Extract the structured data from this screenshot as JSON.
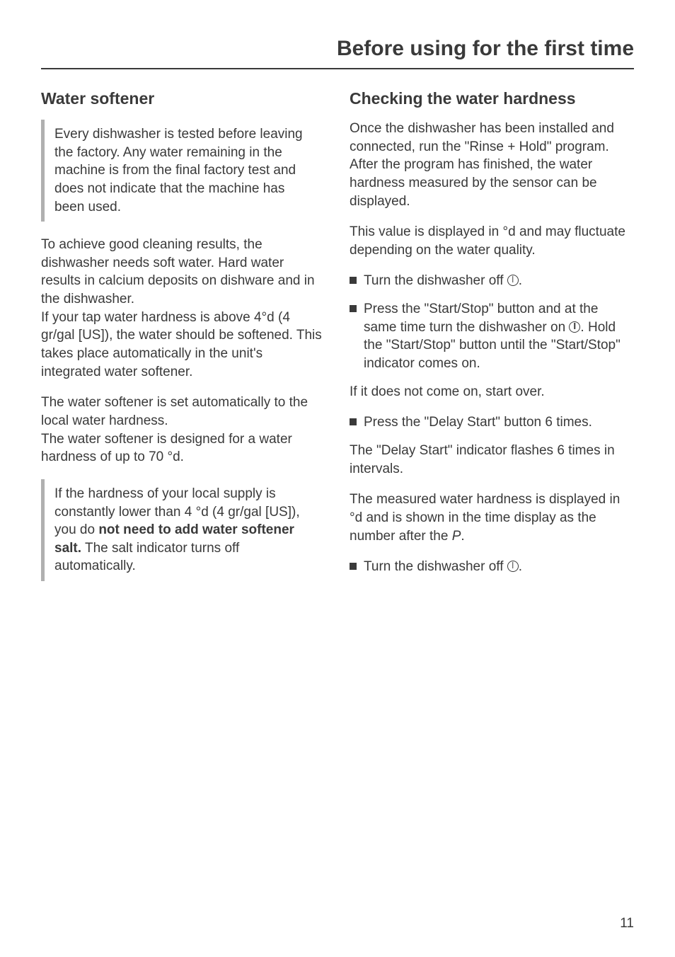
{
  "header": {
    "title": "Before using for the first time"
  },
  "left": {
    "heading": "Water softener",
    "note1": "Every dishwasher is tested before leaving the factory. Any water remaining in the machine is from the final factory test and does not indicate that the machine has been used.",
    "para1": "To achieve good cleaning results, the dishwasher needs soft water. Hard water results in calcium deposits on dishware and in the dishwasher.\nIf your tap water hardness is above 4°d (4 gr/gal [US]), the water should be softened. This takes place automatically in the unit's integrated water softener.",
    "para2": "The water softener is set automatically to the local water hardness.\nThe water softener is designed for a water hardness of up to 70 °d.",
    "note2_pre": "If the hardness of your local supply is constantly lower than 4 °d  (4 gr/gal [US]), you do ",
    "note2_bold": "not need to add water softener salt.",
    "note2_post": " The salt indicator turns off automatically."
  },
  "right": {
    "heading": "Checking the water hardness",
    "para1": "Once the dishwasher has been installed and connected, run the \"Rinse + Hold\" program. After the program has finished, the water hardness measured by the sensor can be displayed.",
    "para2": "This value is displayed in °d and may fluctuate depending on the water quality.",
    "bullet1": "Turn the dishwasher off ",
    "bullet2a": "Press the \"Start/Stop\" button and at the same time turn the dishwasher on ",
    "bullet2b": ". Hold the \"Start/Stop\" button until the \"Start/Stop\" indicator comes on.",
    "para3": "If it does not come on, start over.",
    "bullet3": "Press the \"Delay Start\" button 6 times.",
    "para4": "The \"Delay Start\" indicator flashes 6 times in intervals.",
    "para5a": "The measured water hardness is displayed in °d and is shown in the time display as the number after the ",
    "para5p": "P",
    "para5b": ".",
    "bullet4": "Turn the dishwasher off "
  },
  "pageNumber": "11"
}
